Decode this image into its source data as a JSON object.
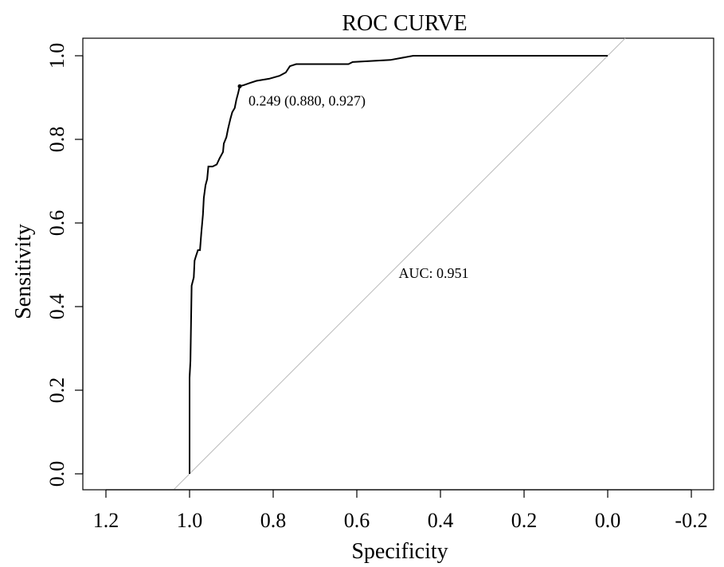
{
  "chart_data": {
    "type": "line",
    "title": "ROC CURVE",
    "xlabel": "Specificity",
    "ylabel": "Sensitivity",
    "xlim": [
      1.2,
      -0.2
    ],
    "ylim": [
      0.0,
      1.0
    ],
    "x_reversed": true,
    "grid": false,
    "x_ticks": [
      1.2,
      1.0,
      0.8,
      0.6,
      0.4,
      0.2,
      0.0,
      -0.2
    ],
    "x_tick_labels": [
      "1.2",
      "1.0",
      "0.8",
      "0.6",
      "0.4",
      "0.2",
      "0.0",
      "-0.2"
    ],
    "y_ticks": [
      0.0,
      0.2,
      0.4,
      0.6,
      0.8,
      1.0
    ],
    "y_tick_labels": [
      "0.0",
      "0.2",
      "0.4",
      "0.6",
      "0.8",
      "1.0"
    ],
    "colors": {
      "roc": "#000000",
      "reference": "#bbbbbb",
      "axis": "#000000"
    },
    "series": [
      {
        "points": [
          [
            1.0,
            0.0
          ],
          [
            1.0,
            0.23
          ],
          [
            0.998,
            0.27
          ],
          [
            0.995,
            0.45
          ],
          [
            0.99,
            0.47
          ],
          [
            0.988,
            0.51
          ],
          [
            0.985,
            0.52
          ],
          [
            0.98,
            0.535
          ],
          [
            0.975,
            0.535
          ],
          [
            0.972,
            0.575
          ],
          [
            0.968,
            0.62
          ],
          [
            0.966,
            0.66
          ],
          [
            0.962,
            0.69
          ],
          [
            0.958,
            0.705
          ],
          [
            0.955,
            0.735
          ],
          [
            0.945,
            0.735
          ],
          [
            0.935,
            0.74
          ],
          [
            0.928,
            0.755
          ],
          [
            0.92,
            0.77
          ],
          [
            0.918,
            0.79
          ],
          [
            0.912,
            0.805
          ],
          [
            0.908,
            0.825
          ],
          [
            0.902,
            0.85
          ],
          [
            0.898,
            0.865
          ],
          [
            0.892,
            0.875
          ],
          [
            0.888,
            0.895
          ],
          [
            0.884,
            0.91
          ],
          [
            0.88,
            0.927
          ],
          [
            0.87,
            0.93
          ],
          [
            0.855,
            0.935
          ],
          [
            0.84,
            0.94
          ],
          [
            0.81,
            0.945
          ],
          [
            0.785,
            0.952
          ],
          [
            0.77,
            0.96
          ],
          [
            0.76,
            0.975
          ],
          [
            0.745,
            0.98
          ],
          [
            0.7,
            0.98
          ],
          [
            0.62,
            0.98
          ],
          [
            0.61,
            0.985
          ],
          [
            0.52,
            0.99
          ],
          [
            0.465,
            1.0
          ],
          [
            0.3,
            1.0
          ],
          [
            0.0,
            1.0
          ]
        ]
      }
    ],
    "reference_line": {
      "from": [
        1.05,
        -0.05
      ],
      "to": [
        -0.05,
        1.05
      ]
    },
    "annotations": [
      {
        "text": "0.249 (0.880, 0.927)",
        "x": 0.88,
        "y": 0.927
      },
      {
        "text": "AUC: 0.951",
        "x": 0.5,
        "y": 0.48
      }
    ]
  }
}
